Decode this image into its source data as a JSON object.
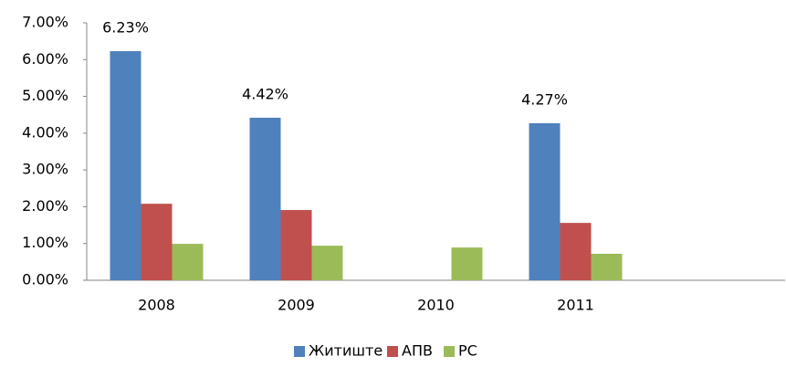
{
  "chart_data": {
    "type": "bar",
    "categories": [
      "2008",
      "2009",
      "2010",
      "2011",
      null
    ],
    "series": [
      {
        "name": "Житиште",
        "color": "#4f81bd",
        "values": [
          6.23,
          4.42,
          null,
          4.27,
          null
        ],
        "value_labels": [
          "6.23%",
          "4.42%",
          null,
          "4.27%",
          null
        ]
      },
      {
        "name": "АПВ",
        "color": "#c0504d",
        "values": [
          2.08,
          1.91,
          null,
          1.56,
          null
        ]
      },
      {
        "name": "РС",
        "color": "#9bbb59",
        "values": [
          0.99,
          0.94,
          0.89,
          0.72,
          null
        ]
      }
    ],
    "ylim": [
      0,
      7
    ],
    "yticks": [
      {
        "value": 0,
        "label": "0.00%"
      },
      {
        "value": 1,
        "label": "1.00%"
      },
      {
        "value": 2,
        "label": "2.00%"
      },
      {
        "value": 3,
        "label": "3.00%"
      },
      {
        "value": 4,
        "label": "4.00%"
      },
      {
        "value": 5,
        "label": "5.00%"
      },
      {
        "value": 6,
        "label": "6.00%"
      },
      {
        "value": 7,
        "label": "7.00%"
      }
    ],
    "grid": false,
    "legend": "bottom"
  }
}
